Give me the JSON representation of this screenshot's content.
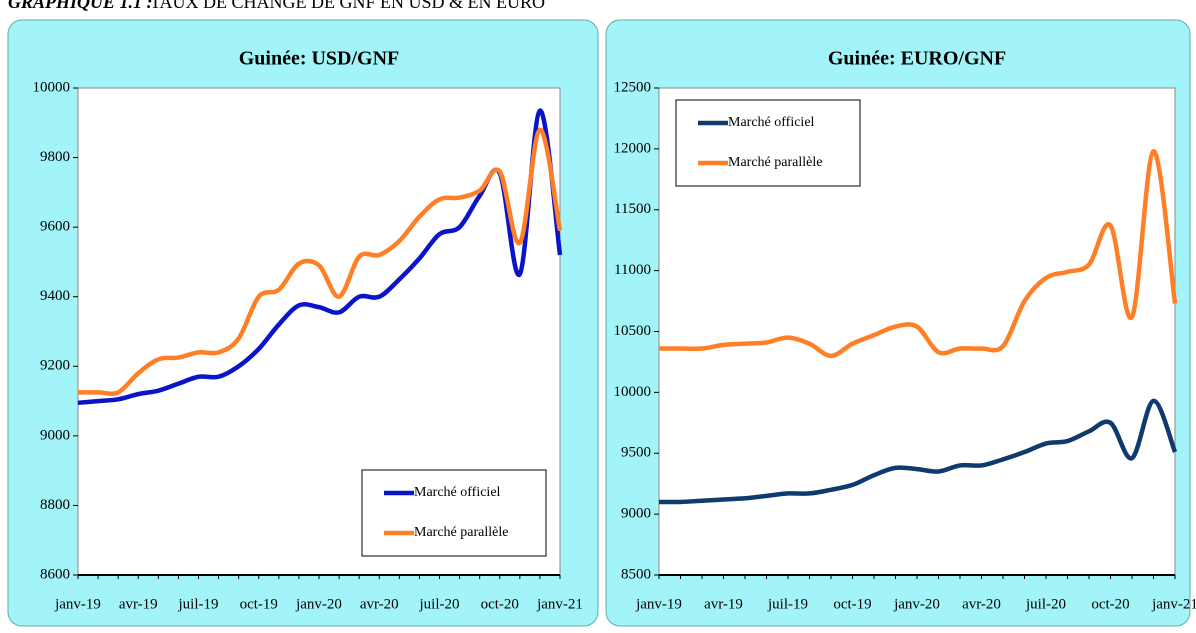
{
  "header": {
    "label": "GRAPHIQUE 1.1 :",
    "title": "TAUX DE CHANGE DE GNF EN USD & EN EURO"
  },
  "chart_data": [
    {
      "type": "line",
      "title": "Guinée: USD/GNF",
      "categories": [
        "janv-19",
        null,
        null,
        "avr-19",
        null,
        null,
        "juil-19",
        null,
        null,
        "oct-19",
        null,
        null,
        "janv-20",
        null,
        null,
        "avr-20",
        null,
        null,
        "juil-20",
        null,
        null,
        "oct-20",
        null,
        null,
        "janv-21"
      ],
      "series": [
        {
          "name": "Marché officiel",
          "color": "#0a14c8",
          "values": [
            9095,
            9100,
            9105,
            9120,
            9130,
            9150,
            9170,
            9170,
            9200,
            9250,
            9320,
            9375,
            9370,
            9355,
            9400,
            9400,
            9450,
            9510,
            9580,
            9600,
            9690,
            9755,
            9465,
            9935,
            9520
          ]
        },
        {
          "name": "Marché parallèle",
          "color": "#ff7f27",
          "values": [
            9125,
            9125,
            9125,
            9180,
            9220,
            9225,
            9240,
            9240,
            9280,
            9400,
            9420,
            9495,
            9490,
            9400,
            9515,
            9520,
            9560,
            9630,
            9680,
            9685,
            9705,
            9760,
            9555,
            9880,
            9590
          ]
        }
      ],
      "ylim": [
        8600,
        10000
      ],
      "yticks": [
        8600,
        8800,
        9000,
        9200,
        9400,
        9600,
        9800,
        10000
      ],
      "legend": "lower right"
    },
    {
      "type": "line",
      "title": "Guinée: EURO/GNF",
      "categories": [
        "janv-19",
        null,
        null,
        "avr-19",
        null,
        null,
        "juil-19",
        null,
        null,
        "oct-19",
        null,
        null,
        "janv-20",
        null,
        null,
        "avr-20",
        null,
        null,
        "juil-20",
        null,
        null,
        "oct-20",
        null,
        null,
        "janv-21"
      ],
      "series": [
        {
          "name": "Marché officiel",
          "color": "#0e3a6e",
          "values": [
            9100,
            9100,
            9110,
            9120,
            9130,
            9150,
            9170,
            9170,
            9200,
            9240,
            9320,
            9380,
            9370,
            9350,
            9400,
            9400,
            9450,
            9510,
            9580,
            9600,
            9680,
            9750,
            9460,
            9930,
            9510
          ]
        },
        {
          "name": "Marché parallèle",
          "color": "#ff7f27",
          "values": [
            10360,
            10360,
            10360,
            10390,
            10400,
            10410,
            10450,
            10400,
            10300,
            10400,
            10470,
            10540,
            10540,
            10330,
            10360,
            10360,
            10380,
            10750,
            10940,
            10990,
            11050,
            11370,
            10620,
            11980,
            10730
          ]
        }
      ],
      "ylim": [
        8500,
        12500
      ],
      "yticks": [
        8500,
        9000,
        9500,
        10000,
        10500,
        11000,
        11500,
        12000,
        12500
      ],
      "legend": "upper left"
    }
  ]
}
